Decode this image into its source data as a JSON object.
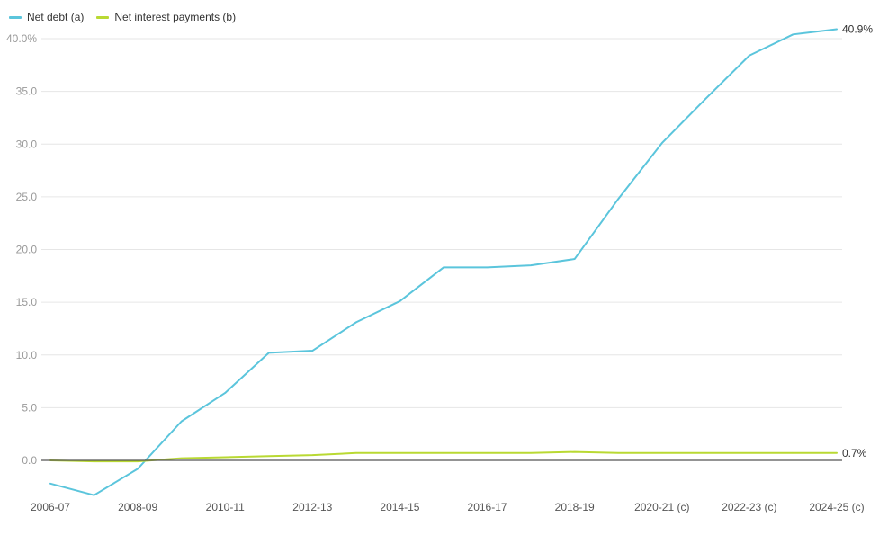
{
  "chart_data": {
    "type": "line",
    "categories": [
      "2006-07",
      "2007-08",
      "2008-09",
      "2009-10",
      "2010-11",
      "2011-12",
      "2012-13",
      "2013-14",
      "2014-15",
      "2015-16",
      "2016-17",
      "2017-18",
      "2018-19",
      "2019-20",
      "2020-21 (c)",
      "2021-22 (c)",
      "2022-23 (c)",
      "2023-24 (c)",
      "2024-25 (c)"
    ],
    "tick_labels": [
      "2006-07",
      "2008-09",
      "2010-11",
      "2012-13",
      "2014-15",
      "2016-17",
      "2018-19",
      "2020-21 (c)",
      "2022-23 (c)",
      "2024-25 (c)"
    ],
    "series": [
      {
        "name": "Net debt (a)",
        "color": "#5bc5dc",
        "values": [
          -2.2,
          -3.3,
          -0.8,
          3.7,
          6.4,
          10.2,
          10.4,
          13.1,
          15.1,
          18.3,
          18.3,
          18.5,
          19.1,
          24.8,
          30.1,
          34.3,
          38.4,
          40.4,
          40.9
        ]
      },
      {
        "name": "Net interest payments (b)",
        "color": "#b9d933",
        "values": [
          0.0,
          -0.1,
          -0.1,
          0.2,
          0.3,
          0.4,
          0.5,
          0.7,
          0.7,
          0.7,
          0.7,
          0.7,
          0.8,
          0.7,
          0.7,
          0.7,
          0.7,
          0.7,
          0.7
        ]
      }
    ],
    "end_labels": [
      "40.9%",
      "0.7%"
    ],
    "y_ticks": [
      "0.0",
      "5.0",
      "10.0",
      "15.0",
      "20.0",
      "25.0",
      "30.0",
      "35.0",
      "40.0%"
    ],
    "ylim": [
      -3.5,
      42
    ],
    "grid": true,
    "legend_position": "top-left"
  }
}
